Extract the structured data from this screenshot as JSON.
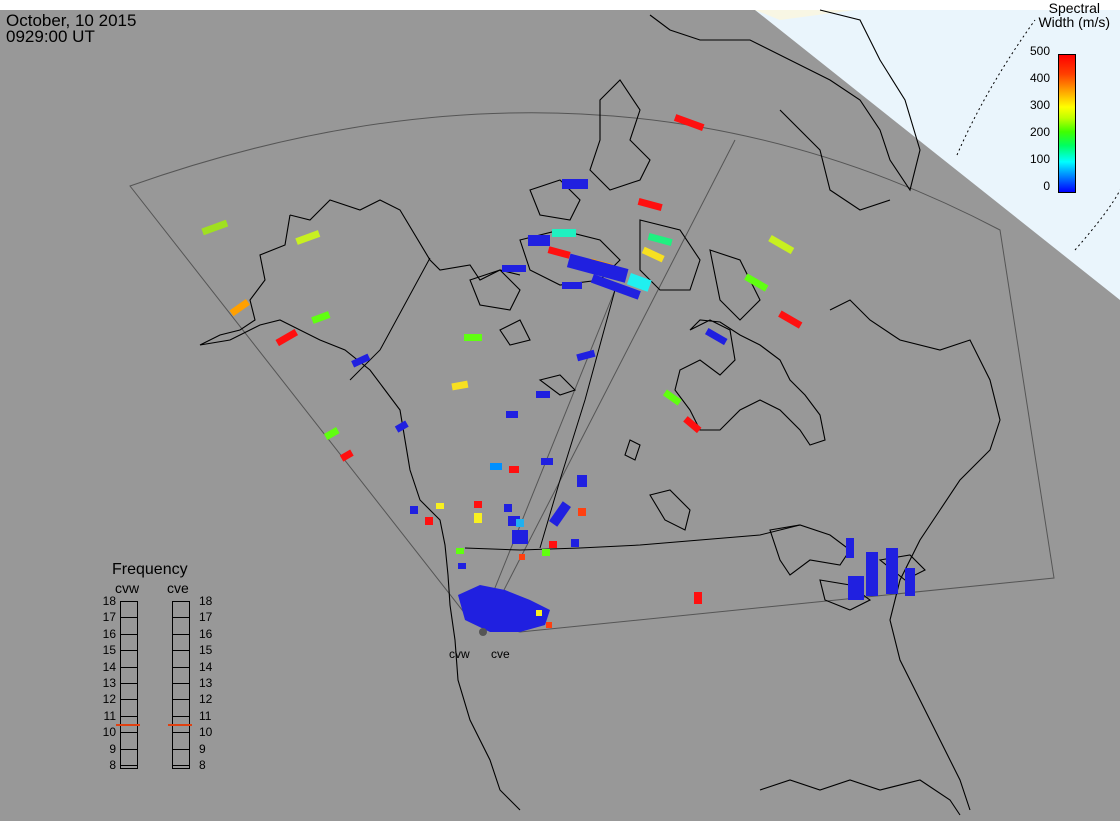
{
  "header": {
    "date": "October, 10 2015",
    "time": "0929:00 UT"
  },
  "colorbar": {
    "title_line1": "Spectral",
    "title_line2": "Width (m/s)",
    "ticks": [
      "500",
      "400",
      "300",
      "200",
      "100",
      "0"
    ],
    "range": [
      0,
      500
    ]
  },
  "frequency": {
    "title": "Frequency",
    "radars": [
      {
        "name": "cvw",
        "value": 10.5
      },
      {
        "name": "cve",
        "value": 10.5
      }
    ],
    "ticks": [
      "18",
      "17",
      "16",
      "15",
      "14",
      "13",
      "12",
      "11",
      "10",
      "9",
      "8"
    ]
  },
  "radar_sites": {
    "west": "cvw",
    "east": "cve"
  },
  "colors": {
    "background": "#989898",
    "daylight": "#e8f4fc",
    "terminator": "#f8f6e4"
  }
}
